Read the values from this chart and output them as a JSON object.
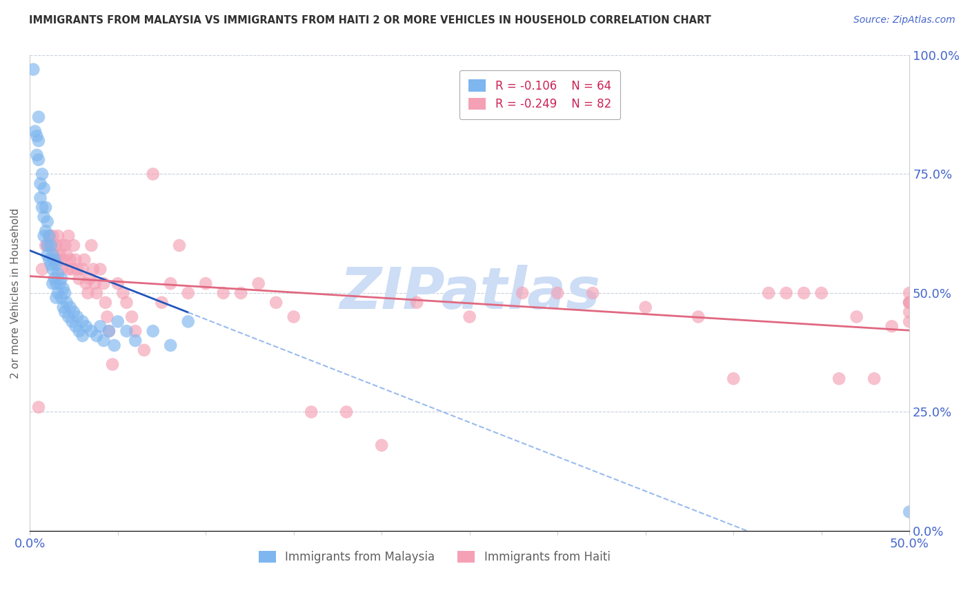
{
  "title": "IMMIGRANTS FROM MALAYSIA VS IMMIGRANTS FROM HAITI 2 OR MORE VEHICLES IN HOUSEHOLD CORRELATION CHART",
  "source": "Source: ZipAtlas.com",
  "ylabel": "2 or more Vehicles in Household",
  "xlim": [
    0.0,
    0.5
  ],
  "ylim": [
    0.0,
    1.0
  ],
  "xtick_positions": [
    0.0,
    0.05,
    0.1,
    0.15,
    0.2,
    0.25,
    0.3,
    0.35,
    0.4,
    0.45,
    0.5
  ],
  "xtick_labels_shown": {
    "0.0": "0.0%",
    "0.5": "50.0%"
  },
  "yticks": [
    0.0,
    0.25,
    0.5,
    0.75,
    1.0
  ],
  "ytick_labels_right": [
    "0.0%",
    "25.0%",
    "50.0%",
    "75.0%",
    "100.0%"
  ],
  "malaysia_R": -0.106,
  "malaysia_N": 64,
  "haiti_R": -0.249,
  "haiti_N": 82,
  "malaysia_color": "#7eb6ef",
  "haiti_color": "#f4a0b5",
  "malaysia_line_color": "#2255bb",
  "malaysia_line_dash_color": "#99bbee",
  "haiti_line_color": "#e06880",
  "watermark": "ZIPatlas",
  "watermark_color": "#ccddf5",
  "grid_color": "#c8d0dc",
  "title_color": "#303030",
  "axis_label_color": "#606060",
  "tick_label_color": "#4466cc",
  "legend_border_color": "#aaaaaa",
  "malaysia_x": [
    0.002,
    0.003,
    0.004,
    0.004,
    0.005,
    0.005,
    0.005,
    0.006,
    0.006,
    0.007,
    0.007,
    0.008,
    0.008,
    0.008,
    0.009,
    0.009,
    0.01,
    0.01,
    0.01,
    0.011,
    0.011,
    0.012,
    0.012,
    0.013,
    0.013,
    0.013,
    0.014,
    0.014,
    0.015,
    0.015,
    0.015,
    0.016,
    0.016,
    0.017,
    0.018,
    0.018,
    0.019,
    0.019,
    0.02,
    0.02,
    0.021,
    0.022,
    0.023,
    0.024,
    0.025,
    0.026,
    0.027,
    0.028,
    0.03,
    0.03,
    0.032,
    0.035,
    0.038,
    0.04,
    0.042,
    0.045,
    0.048,
    0.05,
    0.055,
    0.06,
    0.07,
    0.08,
    0.09,
    0.5
  ],
  "malaysia_y": [
    0.97,
    0.84,
    0.83,
    0.79,
    0.87,
    0.82,
    0.78,
    0.73,
    0.7,
    0.75,
    0.68,
    0.72,
    0.66,
    0.62,
    0.68,
    0.63,
    0.65,
    0.6,
    0.58,
    0.62,
    0.57,
    0.6,
    0.56,
    0.58,
    0.55,
    0.52,
    0.57,
    0.53,
    0.56,
    0.52,
    0.49,
    0.54,
    0.5,
    0.52,
    0.53,
    0.49,
    0.51,
    0.47,
    0.5,
    0.46,
    0.48,
    0.45,
    0.47,
    0.44,
    0.46,
    0.43,
    0.45,
    0.42,
    0.44,
    0.41,
    0.43,
    0.42,
    0.41,
    0.43,
    0.4,
    0.42,
    0.39,
    0.44,
    0.42,
    0.4,
    0.42,
    0.39,
    0.44,
    0.04
  ],
  "haiti_x": [
    0.005,
    0.007,
    0.009,
    0.01,
    0.011,
    0.012,
    0.013,
    0.014,
    0.015,
    0.016,
    0.016,
    0.017,
    0.018,
    0.018,
    0.019,
    0.02,
    0.021,
    0.022,
    0.022,
    0.023,
    0.024,
    0.025,
    0.026,
    0.027,
    0.028,
    0.03,
    0.031,
    0.032,
    0.033,
    0.034,
    0.035,
    0.036,
    0.037,
    0.038,
    0.04,
    0.042,
    0.043,
    0.044,
    0.045,
    0.047,
    0.05,
    0.053,
    0.055,
    0.058,
    0.06,
    0.065,
    0.07,
    0.075,
    0.08,
    0.085,
    0.09,
    0.1,
    0.11,
    0.12,
    0.13,
    0.14,
    0.15,
    0.16,
    0.18,
    0.2,
    0.22,
    0.25,
    0.28,
    0.3,
    0.32,
    0.35,
    0.38,
    0.4,
    0.42,
    0.43,
    0.44,
    0.45,
    0.46,
    0.47,
    0.48,
    0.49,
    0.5,
    0.5,
    0.5,
    0.5,
    0.5,
    0.5
  ],
  "haiti_y": [
    0.26,
    0.55,
    0.6,
    0.6,
    0.62,
    0.6,
    0.62,
    0.58,
    0.6,
    0.62,
    0.57,
    0.58,
    0.6,
    0.55,
    0.57,
    0.6,
    0.58,
    0.62,
    0.55,
    0.57,
    0.55,
    0.6,
    0.57,
    0.55,
    0.53,
    0.55,
    0.57,
    0.52,
    0.5,
    0.53,
    0.6,
    0.55,
    0.52,
    0.5,
    0.55,
    0.52,
    0.48,
    0.45,
    0.42,
    0.35,
    0.52,
    0.5,
    0.48,
    0.45,
    0.42,
    0.38,
    0.75,
    0.48,
    0.52,
    0.6,
    0.5,
    0.52,
    0.5,
    0.5,
    0.52,
    0.48,
    0.45,
    0.25,
    0.25,
    0.18,
    0.48,
    0.45,
    0.5,
    0.5,
    0.5,
    0.47,
    0.45,
    0.32,
    0.5,
    0.5,
    0.5,
    0.5,
    0.32,
    0.45,
    0.32,
    0.43,
    0.48,
    0.48,
    0.46,
    0.44,
    0.5,
    0.48
  ]
}
